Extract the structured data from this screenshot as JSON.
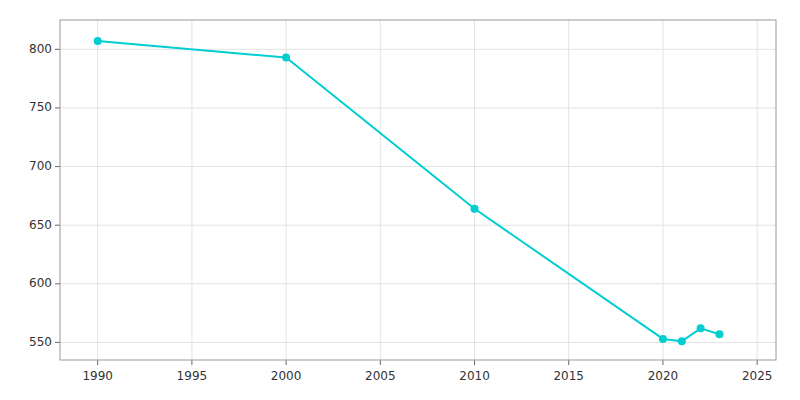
{
  "chart_data": {
    "type": "line",
    "x": [
      1990,
      2000,
      2010,
      2020,
      2021,
      2022,
      2023
    ],
    "values": [
      807,
      793,
      664,
      553,
      551,
      562,
      557
    ],
    "color": "#00CED1",
    "marker": "circle",
    "xlim": [
      1988,
      2026
    ],
    "ylim": [
      535,
      825
    ],
    "xticks": [
      1990,
      1995,
      2000,
      2005,
      2010,
      2015,
      2020,
      2025
    ],
    "yticks": [
      550,
      600,
      650,
      700,
      750,
      800
    ],
    "grid": true
  }
}
